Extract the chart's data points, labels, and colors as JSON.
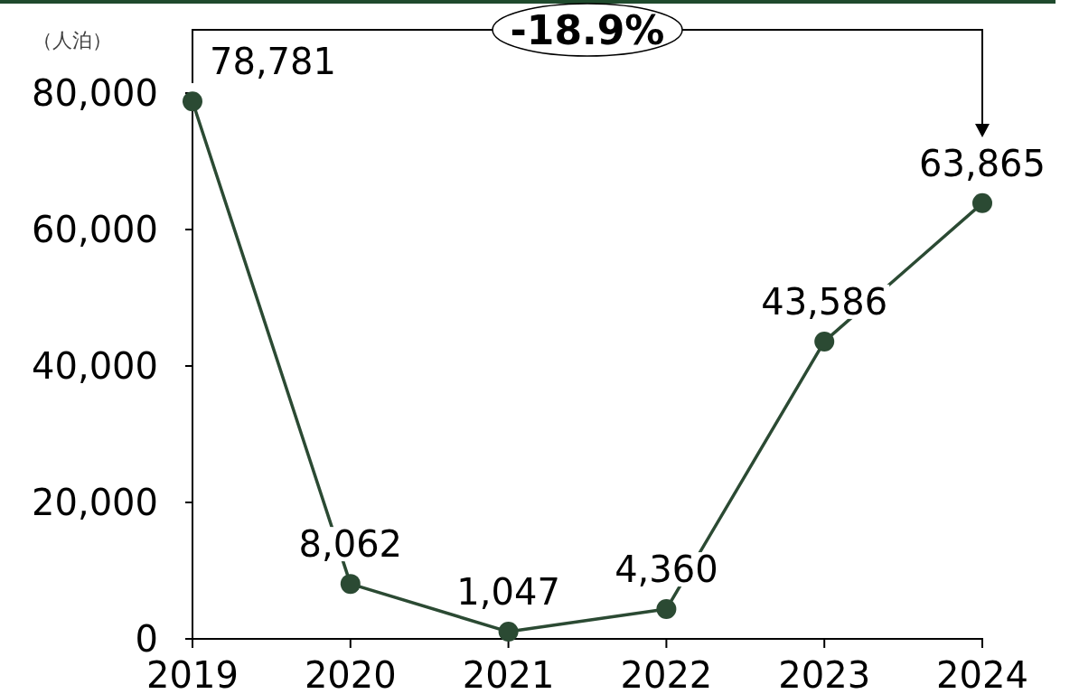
{
  "chart_data": {
    "type": "line",
    "ylabel": "（人泊）",
    "categories": [
      "2019",
      "2020",
      "2021",
      "2022",
      "2023",
      "2024"
    ],
    "series": [
      {
        "color": "#2b4a33",
        "values": [
          78781,
          8062,
          1047,
          4360,
          43586,
          63865
        ],
        "value_labels": [
          "78,781",
          "8,062",
          "1,047",
          "4,360",
          "43,586",
          "63,865"
        ]
      }
    ],
    "ylim": [
      0,
      80000
    ],
    "yticks": [
      0,
      {
        "value": 20000,
        "label": "20,000"
      },
      {
        "value": 40000,
        "label": "40,000"
      },
      {
        "value": 60000,
        "label": "60,000"
      },
      {
        "value": 80000,
        "label": "80,000"
      }
    ],
    "marker": "circle",
    "line_style": "solid",
    "annotations": [
      "-18.9%"
    ]
  }
}
